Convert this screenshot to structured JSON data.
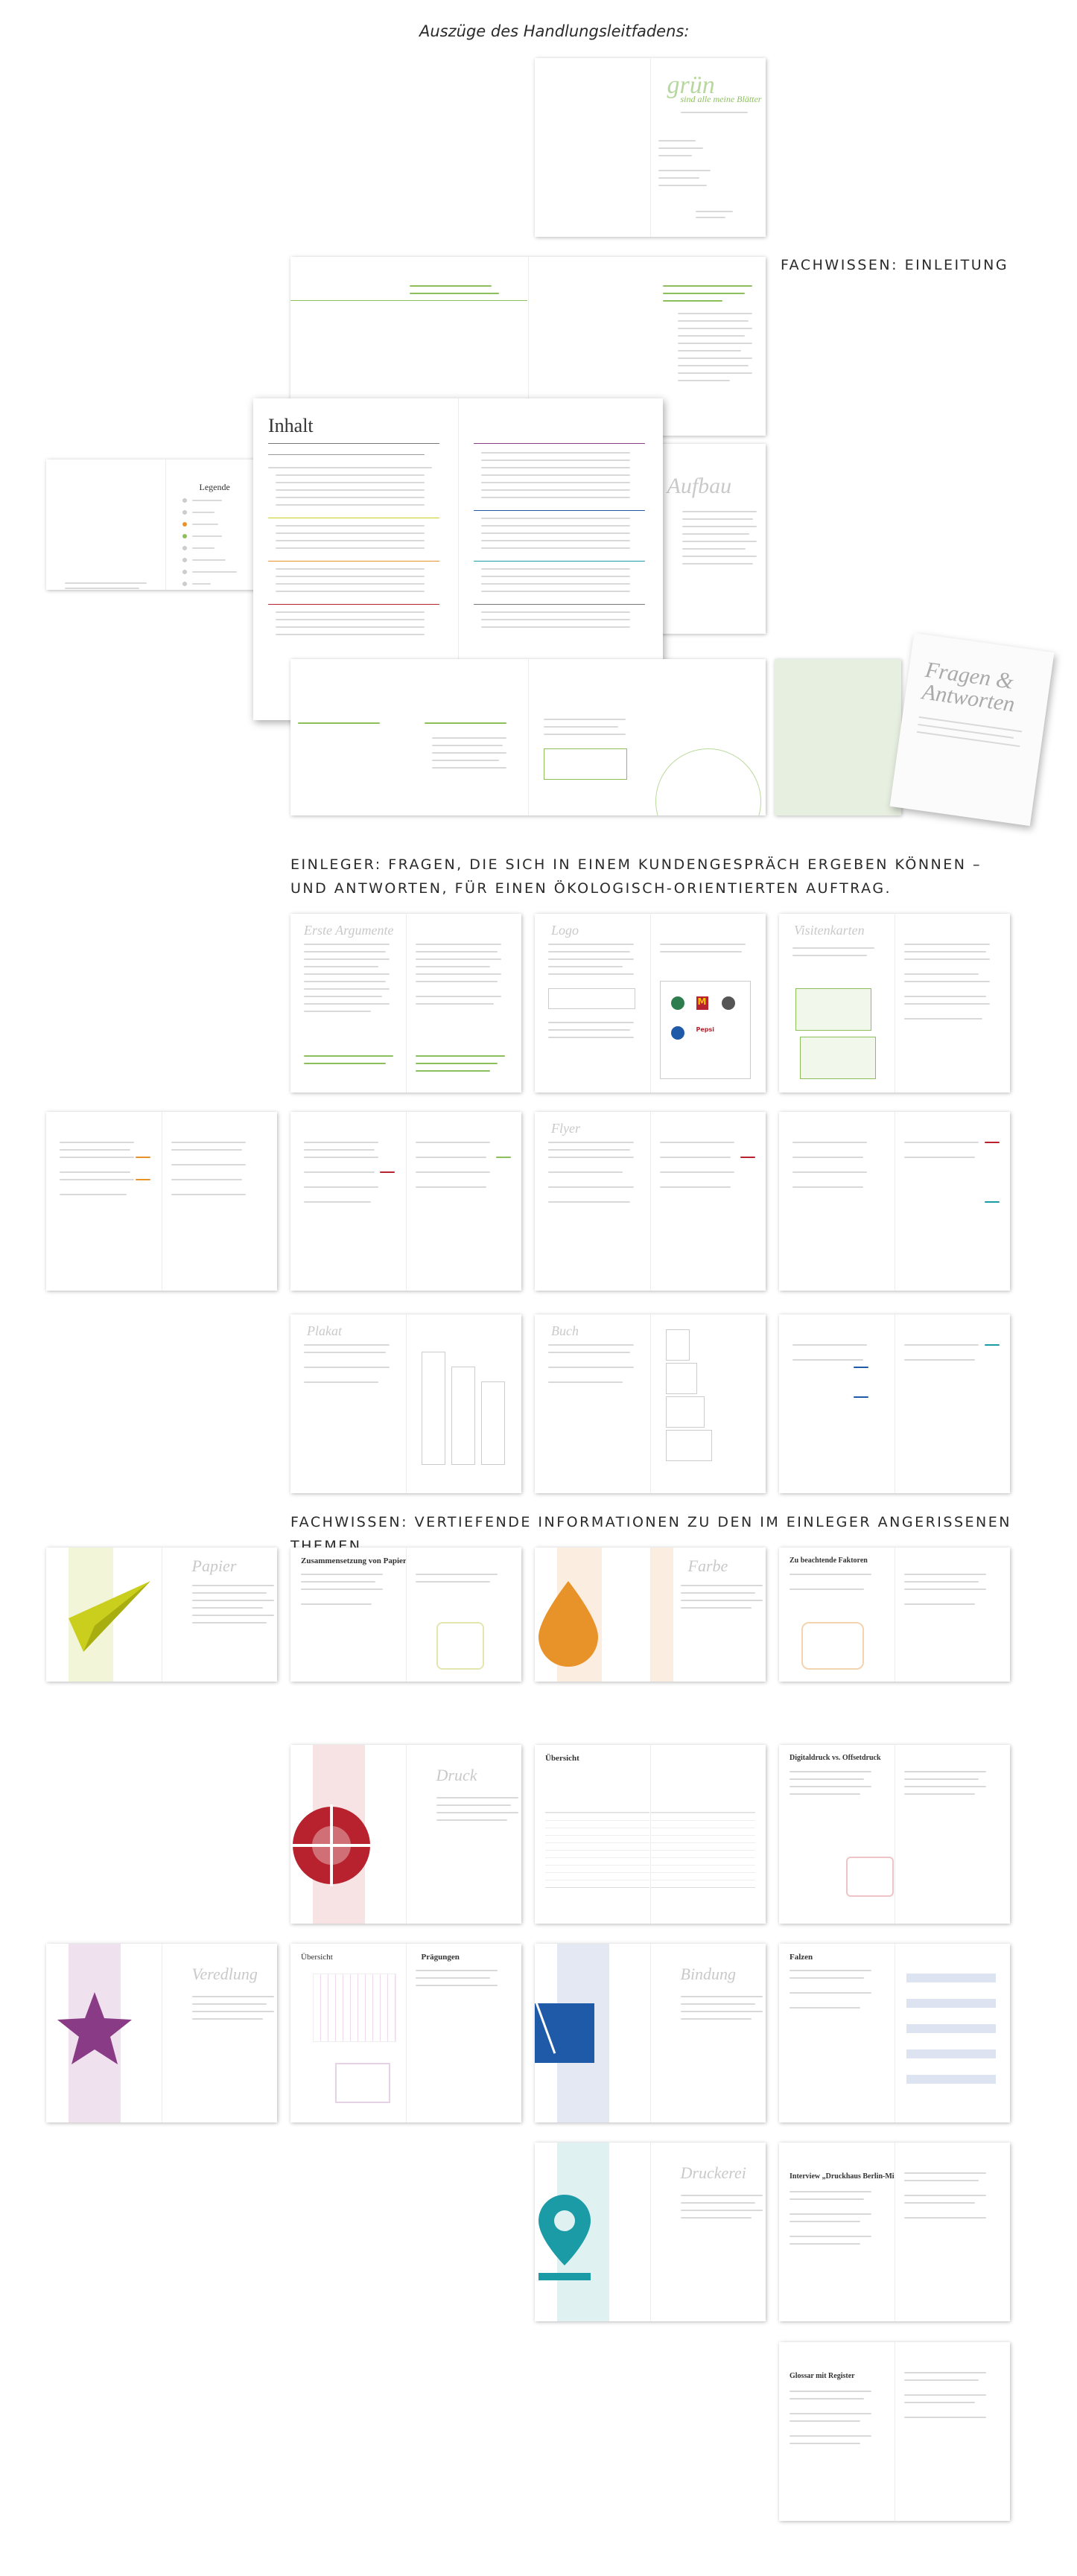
{
  "title": "Auszüge des Handlungsleitfadens:",
  "sections": {
    "intro": "FACHWISSEN: EINLEITUNG",
    "insert_line1": "EINLEGER: FRAGEN, DIE SICH IN EINEM KUNDENGESPRÄCH ERGEBEN KÖNNEN –",
    "insert_line2": "UND ANTWORTEN, FÜR EINEN ÖKOLOGISCH-ORIENTIERTEN AUFTRAG.",
    "deep": "FACHWISSEN: VERTIEFENDE INFORMATIONEN ZU DEN IM EINLEGER ANGERISSENEN THEMEN"
  },
  "intro_pages": {
    "cover_title": "grün",
    "cover_subtitle": "sind alle meine Blätter",
    "legend_title": "Legende",
    "toc_title": "Inhalt",
    "aufbau": "Aufbau",
    "book_title": "Fragen & Antworten"
  },
  "insert_pages": {
    "erste_argumente": "Erste Argumente",
    "logo": "Logo",
    "visitenkarten": "Visitenkarten",
    "flyer": "Flyer",
    "plakat": "Plakat",
    "buch": "Buch",
    "logo_brands": [
      "Apple",
      "McDonald's",
      "Starbucks",
      "Pepsi"
    ]
  },
  "deep_pages": {
    "papier": "Papier",
    "zusammensetzung": "Zusammensetzung von Papier",
    "farbe": "Farbe",
    "farben_heading": "Zu beachtende Faktoren",
    "druck": "Druck",
    "uebersicht": "Übersicht",
    "digitaldruck": "Digitaldruck vs. Offsetdruck",
    "veredlung": "Veredlung",
    "praegungen": "Prägungen",
    "bindung": "Bindung",
    "falzen": "Falzen",
    "druckerei": "Druckerei",
    "interview": "Interview „Druckhaus Berlin-Mitte“",
    "glossar": "Glossar mit Register"
  },
  "colors": {
    "papier": "#c9cf1c",
    "farbe": "#e8922a",
    "druck": "#b8222e",
    "veredlung": "#8a3b86",
    "bindung": "#1f5aa8",
    "druckerei": "#1b9ba6",
    "green": "#8cbf5a"
  }
}
